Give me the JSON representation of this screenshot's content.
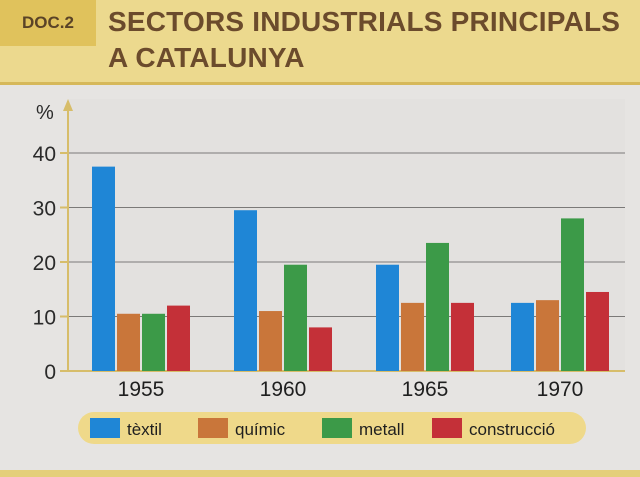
{
  "header": {
    "doc_label": "DOC.2",
    "title_line1": "SECTORS INDUSTRIALS PRINCIPALS",
    "title_line2": "A CATALUNYA"
  },
  "colors": {
    "header_bg": "#ecd98e",
    "title_text": "#6b4b2c",
    "legend_bg": "#efd98a"
  },
  "chart_data": {
    "type": "bar",
    "title": "SECTORS INDUSTRIALS PRINCIPALS A CATALUNYA",
    "ylabel": "%",
    "xlabel": "",
    "ylim": [
      0,
      40
    ],
    "yticks": [
      0,
      10,
      20,
      30,
      40
    ],
    "grid": true,
    "legend_position": "bottom",
    "categories": [
      "1955",
      "1960",
      "1965",
      "1970"
    ],
    "series": [
      {
        "name": "tèxtil",
        "color": "#1f86d6",
        "values": [
          37.5,
          29.5,
          19.5,
          12.5
        ]
      },
      {
        "name": "químic",
        "color": "#c9763a",
        "values": [
          10.5,
          11,
          12.5,
          13
        ]
      },
      {
        "name": "metall",
        "color": "#3c9a48",
        "values": [
          10.5,
          19.5,
          23.5,
          28
        ]
      },
      {
        "name": "construcció",
        "color": "#c43038",
        "values": [
          12,
          8,
          12.5,
          14.5
        ]
      }
    ]
  }
}
